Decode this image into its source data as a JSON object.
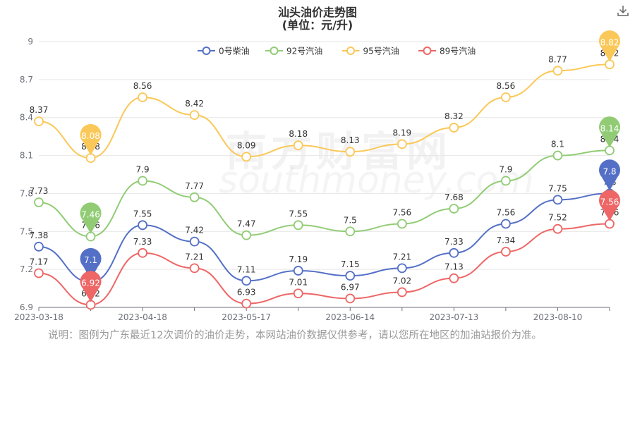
{
  "header": {
    "title_line1": "汕头油价走势图",
    "title_line2": "(单位：元/升)",
    "download_icon": "download-icon"
  },
  "watermark": {
    "cn": "南方财富网",
    "en": "southmoney.com"
  },
  "note": "说明：图例为广东最近12次调价的油价走势，本网站油价数据仅供参考，请以您所在地区的加油站报价为准。",
  "colors": {
    "series0": "#5470c6",
    "series1": "#91cc75",
    "series2": "#fac858",
    "series3": "#ee6666",
    "grid": "#e6e6e6",
    "axis": "#6e7079"
  },
  "chart_data": {
    "type": "line",
    "x_labels": [
      "2023-03-18",
      "",
      "2023-04-18",
      "",
      "2023-05-17",
      "",
      "2023-06-14",
      "",
      "2023-07-13",
      "",
      "2023-08-10",
      ""
    ],
    "y_ticks": [
      6.9,
      7.2,
      7.5,
      7.8,
      8.1,
      8.4,
      8.7,
      9
    ],
    "ylim": [
      6.9,
      9
    ],
    "legend_position": "top-center",
    "series": [
      {
        "name": "0号柴油",
        "values": [
          7.38,
          7.1,
          7.55,
          7.42,
          7.11,
          7.19,
          7.15,
          7.21,
          7.33,
          7.56,
          7.75,
          7.8
        ],
        "min_index": 1,
        "max_index": 11
      },
      {
        "name": "92号汽油",
        "values": [
          7.73,
          7.46,
          7.9,
          7.77,
          7.47,
          7.55,
          7.5,
          7.56,
          7.68,
          7.9,
          8.1,
          8.14
        ],
        "min_index": 1,
        "max_index": 11
      },
      {
        "name": "95号汽油",
        "values": [
          8.37,
          8.08,
          8.56,
          8.42,
          8.09,
          8.18,
          8.13,
          8.19,
          8.32,
          8.56,
          8.77,
          8.82
        ],
        "min_index": 1,
        "max_index": 11
      },
      {
        "name": "89号汽油",
        "values": [
          7.17,
          6.92,
          7.33,
          7.21,
          6.93,
          7.01,
          6.97,
          7.02,
          7.13,
          7.34,
          7.52,
          7.56
        ],
        "min_index": 1,
        "max_index": 11
      }
    ]
  }
}
